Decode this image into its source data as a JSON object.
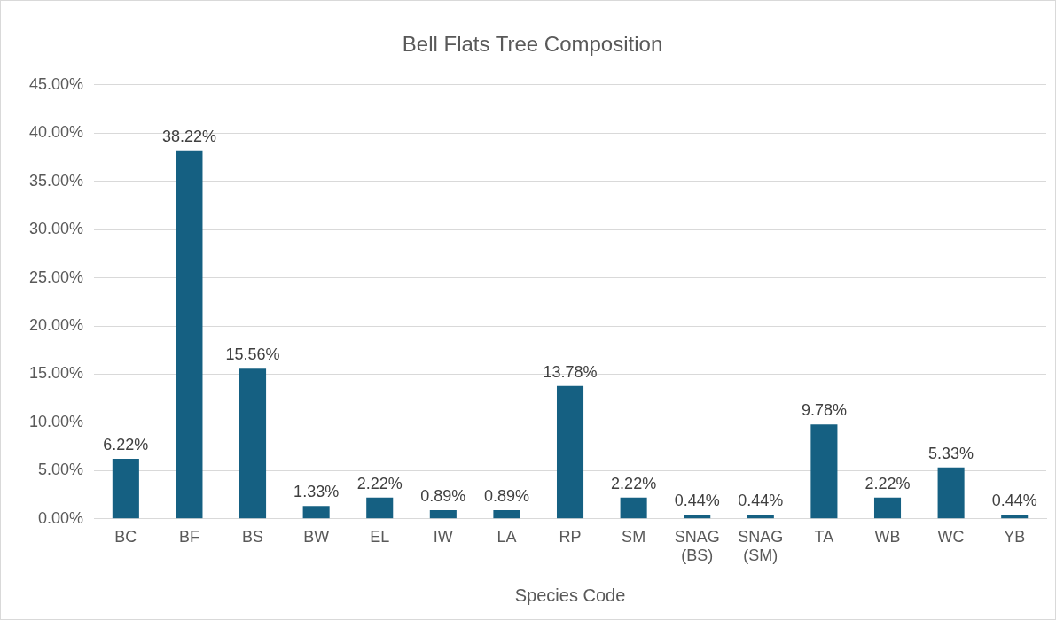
{
  "chart_data": {
    "type": "bar",
    "title": "Bell Flats Tree Composition",
    "xlabel": "Species Code",
    "categories": [
      "BC",
      "BF",
      "BS",
      "BW",
      "EL",
      "IW",
      "LA",
      "RP",
      "SM",
      "SNAG (BS)",
      "SNAG (SM)",
      "TA",
      "WB",
      "WC",
      "YB"
    ],
    "values": [
      6.22,
      38.22,
      15.56,
      1.33,
      2.22,
      0.89,
      0.89,
      13.78,
      2.22,
      0.44,
      0.44,
      9.78,
      2.22,
      5.33,
      0.44
    ],
    "value_labels": [
      "6.22%",
      "38.22%",
      "15.56%",
      "1.33%",
      "2.22%",
      "0.89%",
      "0.89%",
      "13.78%",
      "2.22%",
      "0.44%",
      "0.44%",
      "9.78%",
      "2.22%",
      "5.33%",
      "0.44%"
    ],
    "color": "#156082",
    "ylim": [
      0,
      45
    ],
    "yticks": [
      {
        "value": 0,
        "label": "0.00%"
      },
      {
        "value": 5,
        "label": "5.00%"
      },
      {
        "value": 10,
        "label": "10.00%"
      },
      {
        "value": 15,
        "label": "15.00%"
      },
      {
        "value": 20,
        "label": "20.00%"
      },
      {
        "value": 25,
        "label": "25.00%"
      },
      {
        "value": 30,
        "label": "30.00%"
      },
      {
        "value": 35,
        "label": "35.00%"
      },
      {
        "value": 40,
        "label": "40.00%"
      },
      {
        "value": 45,
        "label": "45.00%"
      }
    ],
    "grid": "y",
    "legend": false
  }
}
